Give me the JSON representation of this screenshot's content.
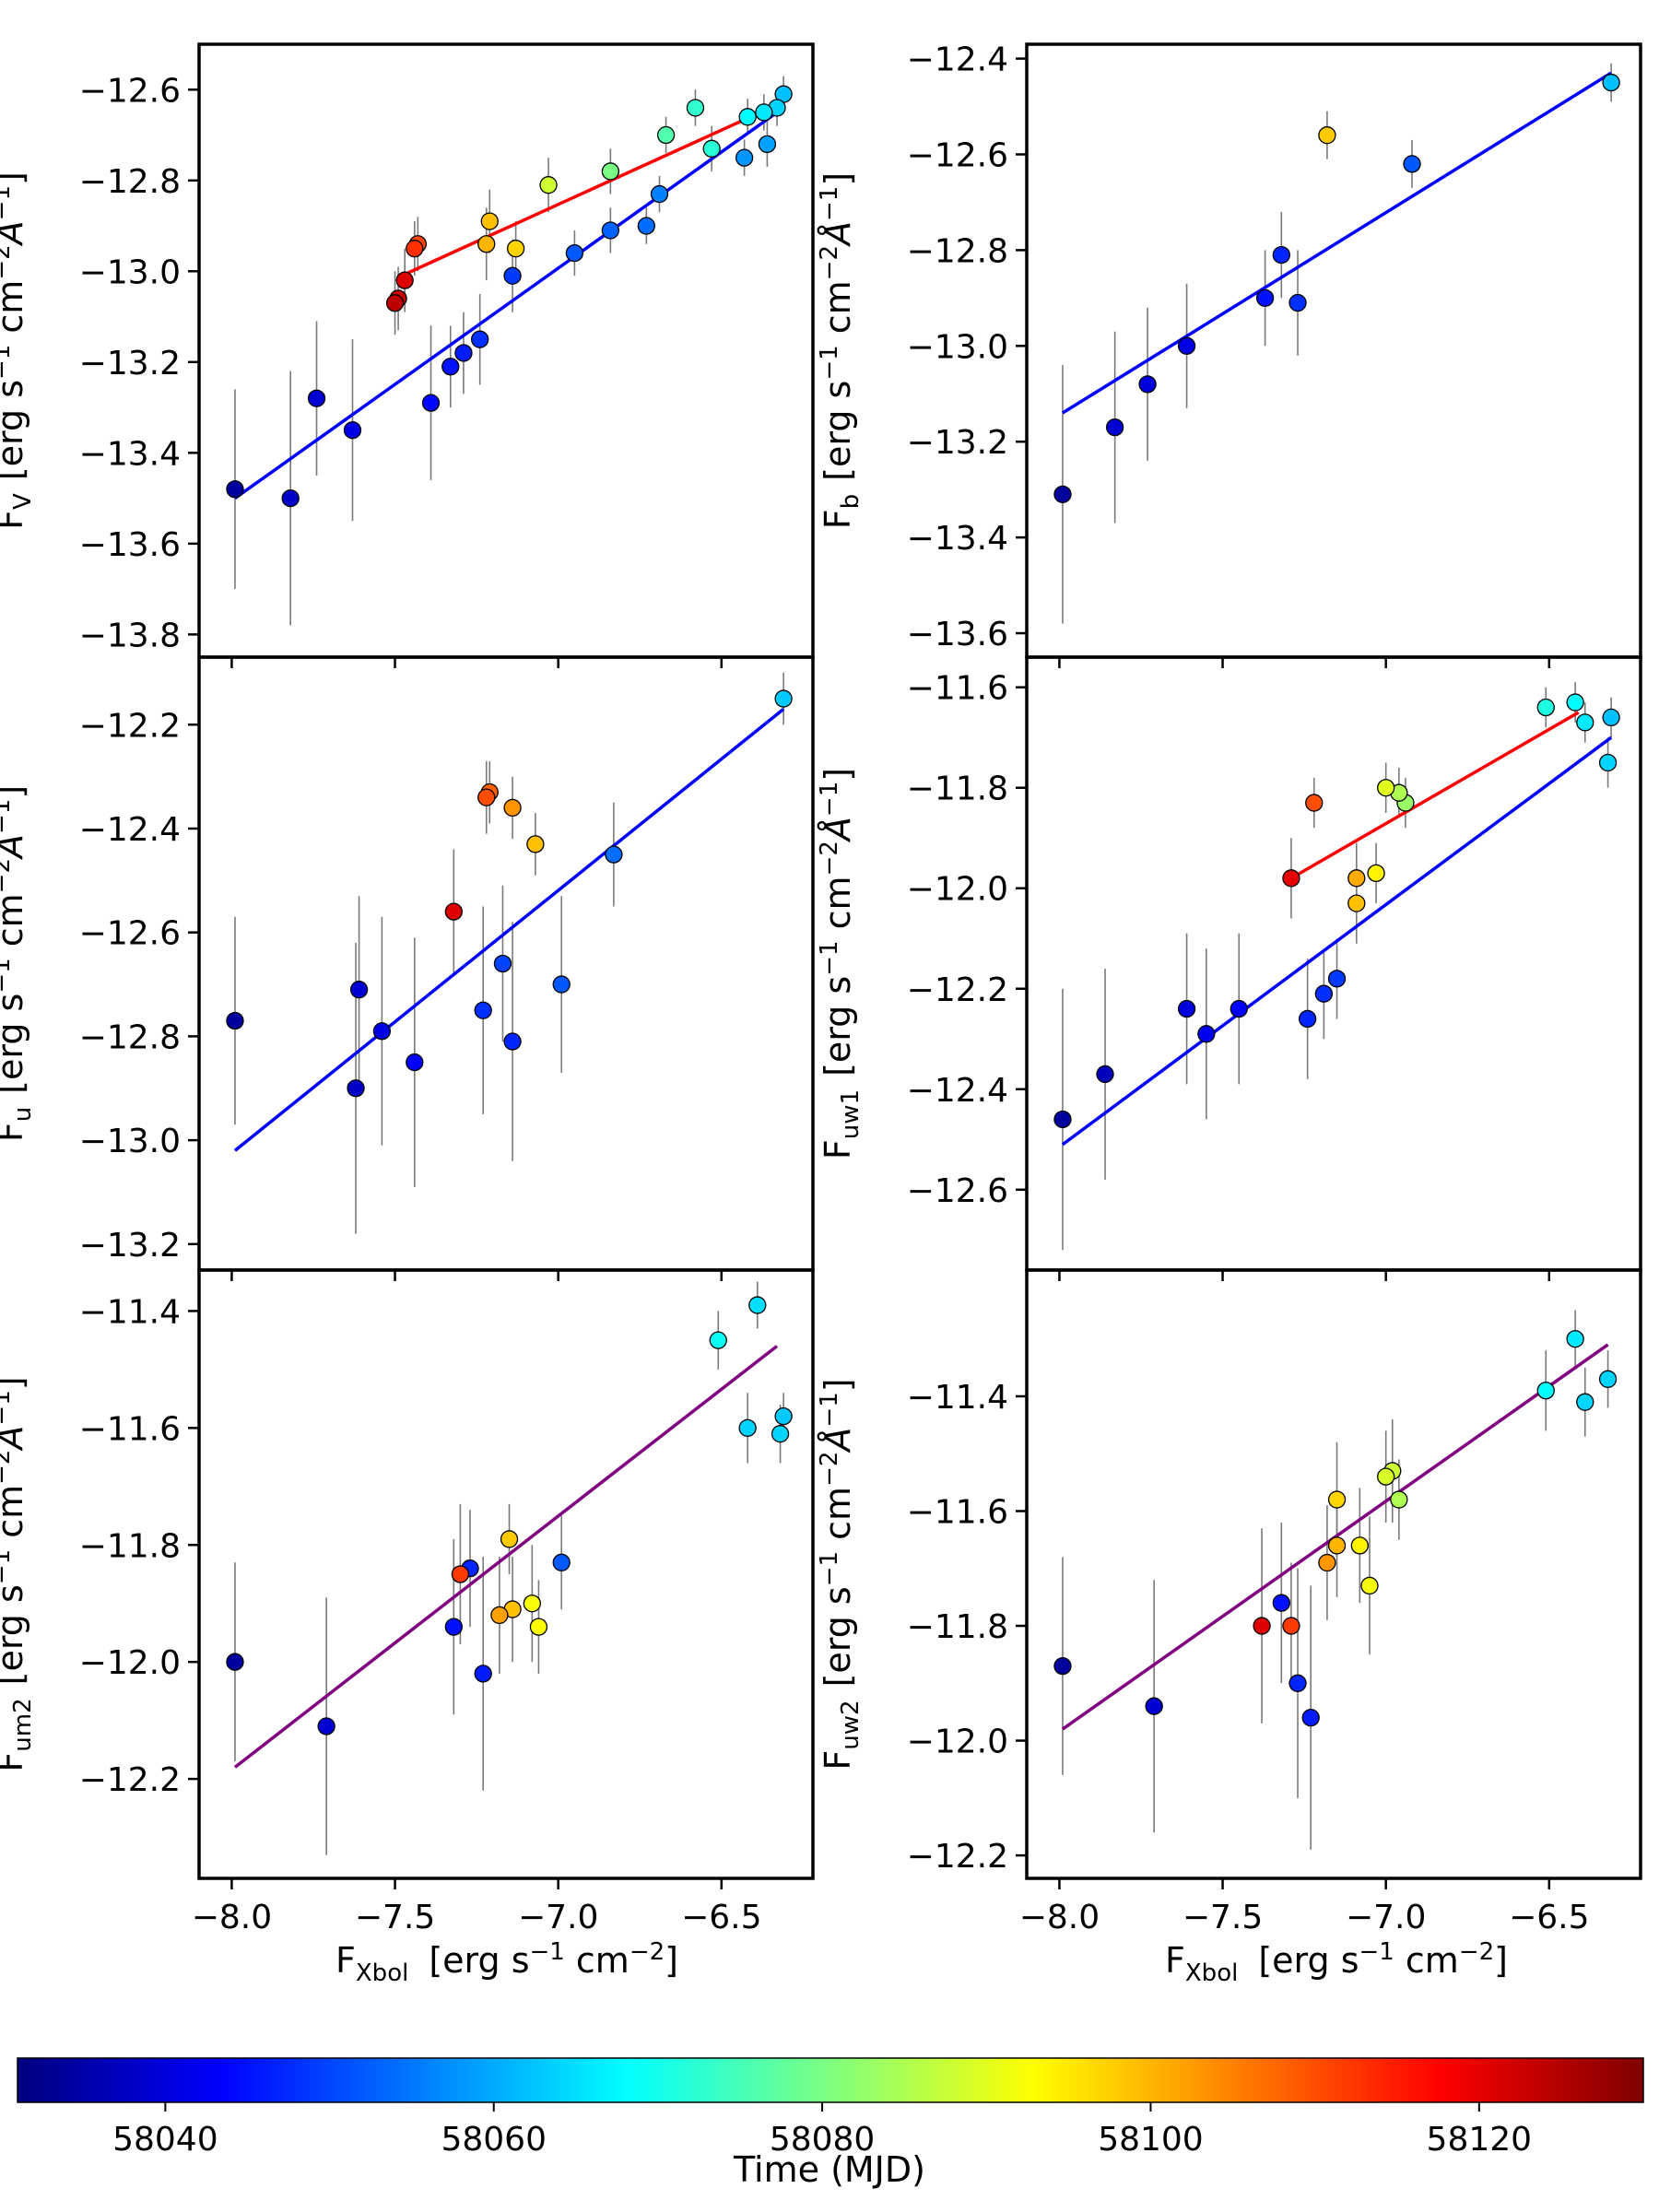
{
  "colorbar": {
    "label": "Time (MJD)",
    "ticks": [
      "58040",
      "58060",
      "58080",
      "58100",
      "58120"
    ],
    "tick_values": [
      58040,
      58060,
      58080,
      58100,
      58120
    ],
    "range": [
      58031,
      58130
    ],
    "colormap": "jet",
    "stops": [
      "#00007f",
      "#0000ff",
      "#007fff",
      "#00ffff",
      "#7fff7f",
      "#ffff00",
      "#ff7f00",
      "#ff0000",
      "#7f0000"
    ]
  },
  "x_axis_label": {
    "main": "F",
    "sub": "Xbol",
    "units": "[erg s",
    "e1": "−1",
    "mid": " cm",
    "e2": "−2",
    "end": "]"
  },
  "chart_data": [
    {
      "type": "scatter",
      "panel": "F_V",
      "ylabel": {
        "main": "F",
        "sub": "V"
      },
      "xlim": [
        -8.1,
        -6.22
      ],
      "ylim": [
        -13.85,
        -12.5
      ],
      "xticks": [
        -8.0,
        -7.5,
        -7.0,
        -6.5
      ],
      "yticks": [
        -13.8,
        -13.6,
        -13.4,
        -13.2,
        -13.0,
        -12.8,
        -12.6
      ],
      "xticklabels": [
        "−8.0",
        "−7.5",
        "−7.0",
        "−6.5"
      ],
      "yticklabels": [
        "−13.8",
        "−13.6",
        "−13.4",
        "−13.2",
        "−13.0",
        "−12.8",
        "−12.6"
      ],
      "fit_lines": [
        {
          "color": "#0000ff",
          "x": [
            -7.99,
            -6.31
          ],
          "y": [
            -13.5,
            -12.64
          ]
        },
        {
          "color": "#ff0000",
          "x": [
            -7.48,
            -6.35
          ],
          "y": [
            -13.01,
            -12.64
          ]
        }
      ],
      "points": [
        {
          "x": -7.99,
          "y": -13.48,
          "err": 0.22,
          "t": 58034
        },
        {
          "x": -7.82,
          "y": -13.5,
          "err": 0.28,
          "t": 58038
        },
        {
          "x": -7.74,
          "y": -13.28,
          "err": 0.17,
          "t": 58039
        },
        {
          "x": -7.63,
          "y": -13.35,
          "err": 0.2,
          "t": 58041
        },
        {
          "x": -7.39,
          "y": -13.29,
          "err": 0.17,
          "t": 58044
        },
        {
          "x": -7.33,
          "y": -13.21,
          "err": 0.09,
          "t": 58045
        },
        {
          "x": -7.29,
          "y": -13.18,
          "err": 0.09,
          "t": 58046
        },
        {
          "x": -7.24,
          "y": -13.15,
          "err": 0.1,
          "t": 58048
        },
        {
          "x": -7.14,
          "y": -13.01,
          "err": 0.08,
          "t": 58049
        },
        {
          "x": -6.95,
          "y": -12.96,
          "err": 0.05,
          "t": 58052
        },
        {
          "x": -6.84,
          "y": -12.91,
          "err": 0.05,
          "t": 58053
        },
        {
          "x": -6.73,
          "y": -12.9,
          "err": 0.04,
          "t": 58054
        },
        {
          "x": -6.69,
          "y": -12.83,
          "err": 0.04,
          "t": 58056
        },
        {
          "x": -6.43,
          "y": -12.75,
          "err": 0.04,
          "t": 58058
        },
        {
          "x": -6.36,
          "y": -12.72,
          "err": 0.05,
          "t": 58059
        },
        {
          "x": -6.31,
          "y": -12.61,
          "err": 0.04,
          "t": 58062
        },
        {
          "x": -6.33,
          "y": -12.64,
          "err": 0.04,
          "t": 58064
        },
        {
          "x": -6.37,
          "y": -12.65,
          "err": 0.04,
          "t": 58066
        },
        {
          "x": -6.42,
          "y": -12.66,
          "err": 0.04,
          "t": 58068
        },
        {
          "x": -6.53,
          "y": -12.73,
          "err": 0.05,
          "t": 58072
        },
        {
          "x": -6.58,
          "y": -12.64,
          "err": 0.04,
          "t": 58073
        },
        {
          "x": -6.67,
          "y": -12.7,
          "err": 0.04,
          "t": 58076
        },
        {
          "x": -6.84,
          "y": -12.78,
          "err": 0.05,
          "t": 58080
        },
        {
          "x": -7.03,
          "y": -12.81,
          "err": 0.06,
          "t": 58088
        },
        {
          "x": -7.13,
          "y": -12.95,
          "err": 0.06,
          "t": 58097
        },
        {
          "x": -7.21,
          "y": -12.89,
          "err": 0.07,
          "t": 58099
        },
        {
          "x": -7.22,
          "y": -12.94,
          "err": 0.08,
          "t": 58100
        },
        {
          "x": -7.43,
          "y": -12.94,
          "err": 0.06,
          "t": 58111
        },
        {
          "x": -7.44,
          "y": -12.95,
          "err": 0.06,
          "t": 58113
        },
        {
          "x": -7.47,
          "y": -13.02,
          "err": 0.07,
          "t": 58121
        },
        {
          "x": -7.49,
          "y": -13.06,
          "err": 0.07,
          "t": 58123
        },
        {
          "x": -7.5,
          "y": -13.07,
          "err": 0.07,
          "t": 58124
        }
      ]
    },
    {
      "type": "scatter",
      "panel": "F_b",
      "ylabel": {
        "main": "F",
        "sub": "b"
      },
      "xlim": [
        -8.1,
        -6.22
      ],
      "ylim": [
        -13.65,
        -12.37
      ],
      "xticks": [
        -8.0,
        -7.5,
        -7.0,
        -6.5
      ],
      "yticks": [
        -13.6,
        -13.4,
        -13.2,
        -13.0,
        -12.8,
        -12.6,
        -12.4
      ],
      "xticklabels": [
        "−8.0",
        "−7.5",
        "−7.0",
        "−6.5"
      ],
      "yticklabels": [
        "−13.6",
        "−13.4",
        "−13.2",
        "−13.0",
        "−12.8",
        "−12.6",
        "−12.4"
      ],
      "fit_lines": [
        {
          "color": "#0000ff",
          "x": [
            -7.99,
            -6.31
          ],
          "y": [
            -13.14,
            -12.43
          ]
        }
      ],
      "points": [
        {
          "x": -7.99,
          "y": -13.31,
          "err": 0.27,
          "t": 58034
        },
        {
          "x": -7.83,
          "y": -13.17,
          "err": 0.2,
          "t": 58039
        },
        {
          "x": -7.73,
          "y": -13.08,
          "err": 0.16,
          "t": 58040
        },
        {
          "x": -7.61,
          "y": -13.0,
          "err": 0.13,
          "t": 58041
        },
        {
          "x": -7.37,
          "y": -12.9,
          "err": 0.1,
          "t": 58045
        },
        {
          "x": -7.32,
          "y": -12.81,
          "err": 0.09,
          "t": 58047
        },
        {
          "x": -7.27,
          "y": -12.91,
          "err": 0.11,
          "t": 58048
        },
        {
          "x": -7.18,
          "y": -12.56,
          "err": 0.05,
          "t": 58098
        },
        {
          "x": -6.92,
          "y": -12.62,
          "err": 0.05,
          "t": 58052
        },
        {
          "x": -6.31,
          "y": -12.45,
          "err": 0.04,
          "t": 58062
        }
      ]
    },
    {
      "type": "scatter",
      "panel": "F_u",
      "ylabel": {
        "main": "F",
        "sub": "u"
      },
      "xlim": [
        -8.1,
        -6.22
      ],
      "ylim": [
        -13.25,
        -12.07
      ],
      "xticks": [
        -8.0,
        -7.5,
        -7.0,
        -6.5
      ],
      "yticks": [
        -13.2,
        -13.0,
        -12.8,
        -12.6,
        -12.4,
        -12.2
      ],
      "xticklabels": [
        "−8.0",
        "−7.5",
        "−7.0",
        "−6.5"
      ],
      "yticklabels": [
        "−13.2",
        "−13.0",
        "−12.8",
        "−12.6",
        "−12.4",
        "−12.2"
      ],
      "fit_lines": [
        {
          "color": "#0000ff",
          "x": [
            -7.99,
            -6.31
          ],
          "y": [
            -13.02,
            -12.17
          ]
        }
      ],
      "points": [
        {
          "x": -7.99,
          "y": -12.77,
          "err": 0.2,
          "t": 58034
        },
        {
          "x": -7.62,
          "y": -12.9,
          "err": 0.28,
          "t": 58038
        },
        {
          "x": -7.61,
          "y": -12.71,
          "err": 0.18,
          "t": 58039
        },
        {
          "x": -7.54,
          "y": -12.79,
          "err": 0.22,
          "t": 58041
        },
        {
          "x": -7.44,
          "y": -12.85,
          "err": 0.24,
          "t": 58043
        },
        {
          "x": -7.23,
          "y": -12.75,
          "err": 0.2,
          "t": 58048
        },
        {
          "x": -7.17,
          "y": -12.66,
          "err": 0.15,
          "t": 58050
        },
        {
          "x": -7.14,
          "y": -12.81,
          "err": 0.23,
          "t": 58047
        },
        {
          "x": -6.99,
          "y": -12.7,
          "err": 0.17,
          "t": 58052
        },
        {
          "x": -6.83,
          "y": -12.45,
          "err": 0.1,
          "t": 58054
        },
        {
          "x": -6.31,
          "y": -12.15,
          "err": 0.05,
          "t": 58063
        },
        {
          "x": -7.07,
          "y": -12.43,
          "err": 0.06,
          "t": 58099
        },
        {
          "x": -7.14,
          "y": -12.36,
          "err": 0.06,
          "t": 58103
        },
        {
          "x": -7.21,
          "y": -12.33,
          "err": 0.06,
          "t": 58108
        },
        {
          "x": -7.22,
          "y": -12.34,
          "err": 0.07,
          "t": 58110
        },
        {
          "x": -7.32,
          "y": -12.56,
          "err": 0.12,
          "t": 58121
        }
      ]
    },
    {
      "type": "scatter",
      "panel": "F_uw1",
      "ylabel": {
        "main": "F",
        "sub": "uw1"
      },
      "xlim": [
        -8.1,
        -6.22
      ],
      "ylim": [
        -12.76,
        -11.54
      ],
      "xticks": [
        -8.0,
        -7.5,
        -7.0,
        -6.5
      ],
      "yticks": [
        -12.6,
        -12.4,
        -12.2,
        -12.0,
        -11.8,
        -11.6
      ],
      "xticklabels": [
        "−8.0",
        "−7.5",
        "−7.0",
        "−6.5"
      ],
      "yticklabels": [
        "−12.6",
        "−12.4",
        "−12.2",
        "−12.0",
        "−11.8",
        "−11.6"
      ],
      "fit_lines": [
        {
          "color": "#0000ff",
          "x": [
            -7.99,
            -6.31
          ],
          "y": [
            -12.51,
            -11.7
          ]
        },
        {
          "color": "#ff0000",
          "x": [
            -7.29,
            -6.41
          ],
          "y": [
            -11.98,
            -11.65
          ]
        }
      ],
      "points": [
        {
          "x": -7.99,
          "y": -12.46,
          "err": 0.26,
          "t": 58034
        },
        {
          "x": -7.86,
          "y": -12.37,
          "err": 0.21,
          "t": 58037
        },
        {
          "x": -7.61,
          "y": -12.24,
          "err": 0.15,
          "t": 58040
        },
        {
          "x": -7.55,
          "y": -12.29,
          "err": 0.17,
          "t": 58042
        },
        {
          "x": -7.45,
          "y": -12.24,
          "err": 0.15,
          "t": 58043
        },
        {
          "x": -7.24,
          "y": -12.26,
          "err": 0.12,
          "t": 58047
        },
        {
          "x": -7.19,
          "y": -12.21,
          "err": 0.09,
          "t": 58048
        },
        {
          "x": -7.15,
          "y": -12.18,
          "err": 0.08,
          "t": 58049
        },
        {
          "x": -6.31,
          "y": -11.66,
          "err": 0.04,
          "t": 58062
        },
        {
          "x": -6.32,
          "y": -11.75,
          "err": 0.05,
          "t": 58064
        },
        {
          "x": -6.39,
          "y": -11.67,
          "err": 0.04,
          "t": 58066
        },
        {
          "x": -6.42,
          "y": -11.63,
          "err": 0.04,
          "t": 58068
        },
        {
          "x": -6.51,
          "y": -11.64,
          "err": 0.04,
          "t": 58071
        },
        {
          "x": -6.94,
          "y": -11.83,
          "err": 0.05,
          "t": 58083
        },
        {
          "x": -6.96,
          "y": -11.81,
          "err": 0.05,
          "t": 58085
        },
        {
          "x": -7.0,
          "y": -11.8,
          "err": 0.05,
          "t": 58090
        },
        {
          "x": -7.03,
          "y": -11.97,
          "err": 0.06,
          "t": 58094
        },
        {
          "x": -7.09,
          "y": -12.03,
          "err": 0.08,
          "t": 58099
        },
        {
          "x": -7.09,
          "y": -11.98,
          "err": 0.07,
          "t": 58101
        },
        {
          "x": -7.22,
          "y": -11.83,
          "err": 0.05,
          "t": 58110
        },
        {
          "x": -7.29,
          "y": -11.98,
          "err": 0.08,
          "t": 58120
        }
      ]
    },
    {
      "type": "scatter",
      "panel": "F_um2",
      "ylabel": {
        "main": "F",
        "sub": "um2"
      },
      "xlim": [
        -8.1,
        -6.22
      ],
      "ylim": [
        -12.37,
        -11.33
      ],
      "xticks": [
        -8.0,
        -7.5,
        -7.0,
        -6.5
      ],
      "yticks": [
        -12.2,
        -12.0,
        -11.8,
        -11.6,
        -11.4
      ],
      "xticklabels": [
        "−8.0",
        "−7.5",
        "−7.0",
        "−6.5"
      ],
      "yticklabels": [
        "−12.2",
        "−12.0",
        "−11.8",
        "−11.6",
        "−11.4"
      ],
      "fit_lines": [
        {
          "color": "#800080",
          "x": [
            -7.99,
            -6.33
          ],
          "y": [
            -12.18,
            -11.46
          ]
        }
      ],
      "points": [
        {
          "x": -7.99,
          "y": -12.0,
          "err": 0.17,
          "t": 58034
        },
        {
          "x": -7.71,
          "y": -12.11,
          "err": 0.22,
          "t": 58039
        },
        {
          "x": -7.32,
          "y": -11.94,
          "err": 0.15,
          "t": 58045
        },
        {
          "x": -7.27,
          "y": -11.84,
          "err": 0.1,
          "t": 58047
        },
        {
          "x": -7.23,
          "y": -12.02,
          "err": 0.2,
          "t": 58046
        },
        {
          "x": -6.99,
          "y": -11.83,
          "err": 0.08,
          "t": 58052
        },
        {
          "x": -6.51,
          "y": -11.45,
          "err": 0.05,
          "t": 58069
        },
        {
          "x": -6.42,
          "y": -11.6,
          "err": 0.06,
          "t": 58064
        },
        {
          "x": -6.39,
          "y": -11.39,
          "err": 0.04,
          "t": 58065
        },
        {
          "x": -6.32,
          "y": -11.61,
          "err": 0.05,
          "t": 58064
        },
        {
          "x": -6.31,
          "y": -11.58,
          "err": 0.04,
          "t": 58063
        },
        {
          "x": -7.06,
          "y": -11.94,
          "err": 0.08,
          "t": 58093
        },
        {
          "x": -7.08,
          "y": -11.9,
          "err": 0.1,
          "t": 58092
        },
        {
          "x": -7.14,
          "y": -11.91,
          "err": 0.09,
          "t": 58099
        },
        {
          "x": -7.15,
          "y": -11.79,
          "err": 0.06,
          "t": 58098
        },
        {
          "x": -7.18,
          "y": -11.92,
          "err": 0.1,
          "t": 58102
        },
        {
          "x": -7.3,
          "y": -11.85,
          "err": 0.12,
          "t": 58112
        }
      ]
    },
    {
      "type": "scatter",
      "panel": "F_uw2",
      "ylabel": {
        "main": "F",
        "sub": "uw2"
      },
      "xlim": [
        -8.1,
        -6.22
      ],
      "ylim": [
        -12.24,
        -11.18
      ],
      "xticks": [
        -8.0,
        -7.5,
        -7.0,
        -6.5
      ],
      "yticks": [
        -12.2,
        -12.0,
        -11.8,
        -11.6,
        -11.4
      ],
      "xticklabels": [
        "−8.0",
        "−7.5",
        "−7.0",
        "−6.5"
      ],
      "yticklabels": [
        "−12.2",
        "−12.0",
        "−11.8",
        "−11.6",
        "−11.4"
      ],
      "fit_lines": [
        {
          "color": "#800080",
          "x": [
            -7.99,
            -6.32
          ],
          "y": [
            -11.98,
            -11.31
          ]
        }
      ],
      "points": [
        {
          "x": -7.99,
          "y": -11.87,
          "err": 0.19,
          "t": 58034
        },
        {
          "x": -7.71,
          "y": -11.94,
          "err": 0.22,
          "t": 58039
        },
        {
          "x": -7.32,
          "y": -11.76,
          "err": 0.14,
          "t": 58045
        },
        {
          "x": -7.27,
          "y": -11.9,
          "err": 0.2,
          "t": 58047
        },
        {
          "x": -7.23,
          "y": -11.96,
          "err": 0.23,
          "t": 58046
        },
        {
          "x": -6.51,
          "y": -11.39,
          "err": 0.07,
          "t": 58068
        },
        {
          "x": -6.42,
          "y": -11.3,
          "err": 0.05,
          "t": 58066
        },
        {
          "x": -6.39,
          "y": -11.41,
          "err": 0.06,
          "t": 58064
        },
        {
          "x": -6.32,
          "y": -11.37,
          "err": 0.05,
          "t": 58064
        },
        {
          "x": -6.96,
          "y": -11.58,
          "err": 0.07,
          "t": 58085
        },
        {
          "x": -6.98,
          "y": -11.53,
          "err": 0.09,
          "t": 58088
        },
        {
          "x": -7.0,
          "y": -11.54,
          "err": 0.08,
          "t": 58089
        },
        {
          "x": -7.05,
          "y": -11.73,
          "err": 0.12,
          "t": 58092
        },
        {
          "x": -7.08,
          "y": -11.66,
          "err": 0.1,
          "t": 58094
        },
        {
          "x": -7.15,
          "y": -11.58,
          "err": 0.1,
          "t": 58097
        },
        {
          "x": -7.15,
          "y": -11.66,
          "err": 0.09,
          "t": 58100
        },
        {
          "x": -7.18,
          "y": -11.69,
          "err": 0.1,
          "t": 58103
        },
        {
          "x": -7.29,
          "y": -11.8,
          "err": 0.11,
          "t": 58112
        },
        {
          "x": -7.38,
          "y": -11.8,
          "err": 0.17,
          "t": 58121
        }
      ]
    }
  ]
}
